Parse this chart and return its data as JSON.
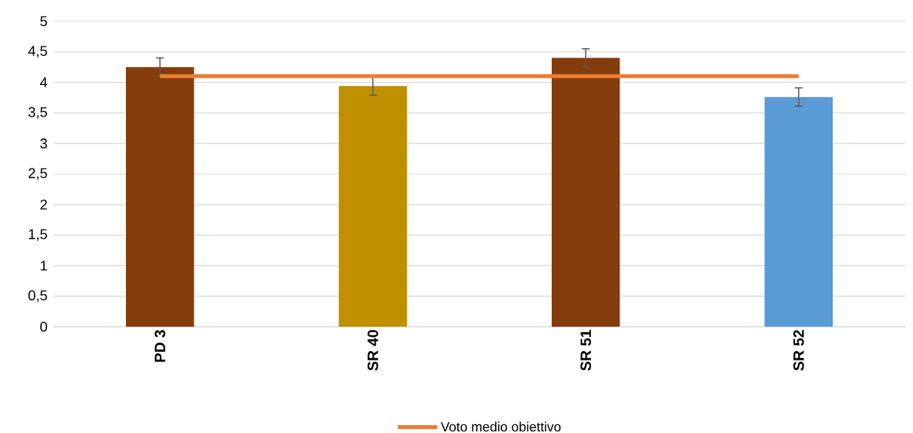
{
  "chart_data": {
    "type": "bar",
    "categories": [
      "PD 3",
      "SR 40",
      "SR 51",
      "SR 52"
    ],
    "series": [
      {
        "colors": [
          "#843c0c",
          "#bf9000",
          "#843c0c",
          "#5b9bd5"
        ],
        "values": [
          4.25,
          3.94,
          4.4,
          3.76
        ],
        "errors": [
          0.15,
          0.15,
          0.15,
          0.15
        ]
      },
      {
        "type": "line",
        "name": "Voto medio obiettivo",
        "color": "#ed7d31",
        "values": [
          4.1,
          4.1,
          4.1,
          4.1
        ]
      }
    ],
    "ylim": [
      0,
      5
    ],
    "yticks": [
      0,
      {
        "value": 0.5,
        "label": "0,5"
      },
      1,
      {
        "value": 1.5,
        "label": "1,5"
      },
      2,
      {
        "value": 2.5,
        "label": "2,5"
      },
      3,
      {
        "value": 3.5,
        "label": "3,5"
      },
      4,
      {
        "value": 4.5,
        "label": "4,5"
      },
      5
    ],
    "grid": "y",
    "legend": "bottom"
  }
}
